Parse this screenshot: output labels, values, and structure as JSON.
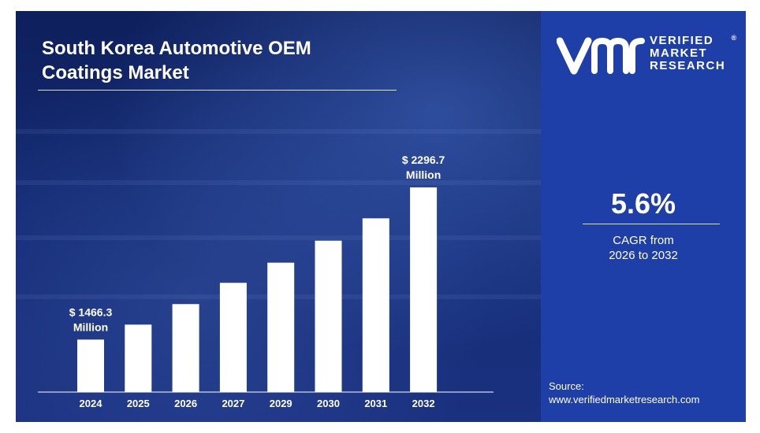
{
  "title_line1": "South Korea Automotive OEM",
  "title_line2": "Coatings Market",
  "brand": {
    "line1": "VERIFIED",
    "line2": "MARKET",
    "line3": "RESEARCH",
    "registered": "®"
  },
  "cagr": {
    "value": "5.6%",
    "label_line1": "CAGR from",
    "label_line2": "2026 to 2032"
  },
  "source": {
    "label": "Source:",
    "url": "www.verifiedmarketresearch.com"
  },
  "colors": {
    "left_bg": "#132a72",
    "right_bg": "#1f3fa8",
    "bar": "#ffffff",
    "text": "#ffffff"
  },
  "chart_data": {
    "type": "bar",
    "categories": [
      "2024",
      "2025",
      "2026",
      "2027",
      "2029",
      "2030",
      "2031",
      "2032"
    ],
    "values": [
      1466.3,
      1548,
      1660,
      1776,
      1886,
      2006,
      2128,
      2296.7
    ],
    "ylim": [
      1180,
      2400
    ],
    "annotations": [
      {
        "index": 0,
        "line1": "$ 1466.3",
        "line2": "Million"
      },
      {
        "index": 7,
        "line1": "$ 2296.7",
        "line2": "Million"
      }
    ],
    "grid": false,
    "legend": "none"
  }
}
